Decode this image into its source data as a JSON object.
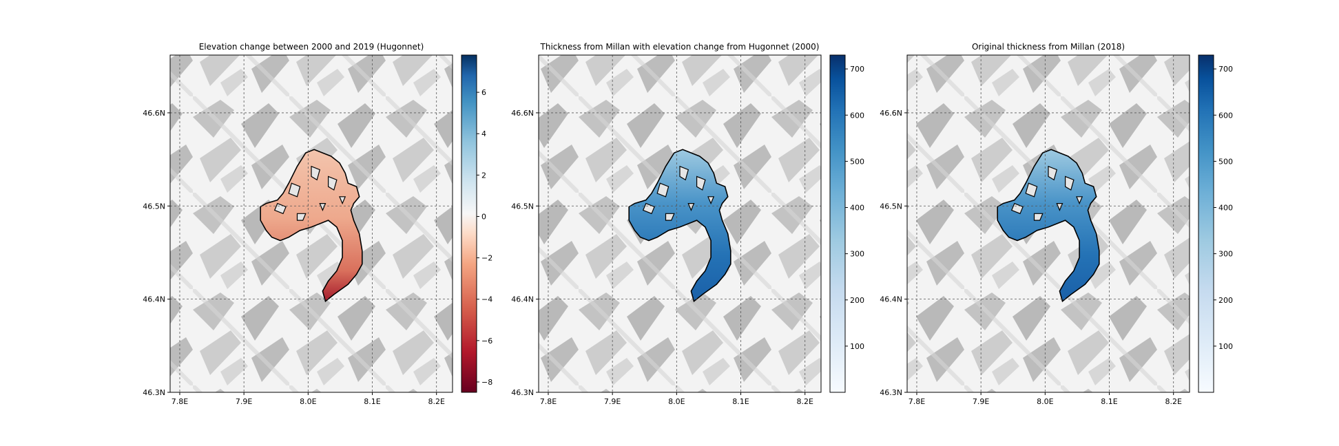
{
  "figure": {
    "panels": [
      {
        "title": "Elevation change between 2000 and 2019 (Hugonnet)",
        "colormap": "RdBu",
        "colorbar_ticks": [
          6,
          4,
          2,
          0,
          -2,
          -4,
          -6,
          -8
        ],
        "colorbar_tick_labels": [
          "6",
          "4",
          "2",
          "0",
          "−2",
          "−4",
          "−6",
          "−8"
        ],
        "colorbar_range": [
          -8.5,
          7.8
        ]
      },
      {
        "title": "Thickness from Millan with elevation change from Hugonnet (2000)",
        "colormap": "Blues",
        "colorbar_ticks": [
          700,
          600,
          500,
          400,
          300,
          200,
          100
        ],
        "colorbar_tick_labels": [
          "700",
          "600",
          "500",
          "400",
          "300",
          "200",
          "100"
        ],
        "colorbar_range": [
          0,
          730
        ]
      },
      {
        "title": "Original thickness from Millan (2018)",
        "colormap": "Blues",
        "colorbar_ticks": [
          700,
          600,
          500,
          400,
          300,
          200,
          100
        ],
        "colorbar_tick_labels": [
          "700",
          "600",
          "500",
          "400",
          "300",
          "200",
          "100"
        ],
        "colorbar_range": [
          0,
          730
        ]
      }
    ]
  },
  "chart_data": [
    {
      "type": "heatmap",
      "title": "Elevation change between 2000 and 2019 (Hugonnet)",
      "x_ticks": [
        7.8,
        7.9,
        8.0,
        8.1,
        8.2
      ],
      "x_tick_labels": [
        "7.8E",
        "7.9E",
        "8.0E",
        "8.1E",
        "8.2E"
      ],
      "y_ticks": [
        46.6,
        46.5,
        46.4,
        46.3
      ],
      "y_tick_labels": [
        "46.6N",
        "46.5N",
        "46.4N",
        "46.3N"
      ],
      "xlim": [
        7.785,
        8.225
      ],
      "ylim": [
        46.3,
        46.662
      ],
      "grid": true,
      "colorbar_range": [
        -8.5,
        7.8
      ]
    },
    {
      "type": "heatmap",
      "title": "Thickness from Millan with elevation change from Hugonnet (2000)",
      "x_ticks": [
        7.8,
        7.9,
        8.0,
        8.1,
        8.2
      ],
      "x_tick_labels": [
        "7.8E",
        "7.9E",
        "8.0E",
        "8.1E",
        "8.2E"
      ],
      "y_ticks": [
        46.6,
        46.5,
        46.4,
        46.3
      ],
      "y_tick_labels": [
        "46.6N",
        "46.5N",
        "46.4N",
        "46.3N"
      ],
      "xlim": [
        7.785,
        8.225
      ],
      "ylim": [
        46.3,
        46.662
      ],
      "grid": true,
      "colorbar_range": [
        0,
        730
      ]
    },
    {
      "type": "heatmap",
      "title": "Original thickness from Millan (2018)",
      "x_ticks": [
        7.8,
        7.9,
        8.0,
        8.1,
        8.2
      ],
      "x_tick_labels": [
        "7.8E",
        "7.9E",
        "8.0E",
        "8.1E",
        "8.2E"
      ],
      "y_ticks": [
        46.6,
        46.5,
        46.4,
        46.3
      ],
      "y_tick_labels": [
        "46.6N",
        "46.5N",
        "46.4N",
        "46.3N"
      ],
      "xlim": [
        7.785,
        8.225
      ],
      "ylim": [
        46.3,
        46.662
      ],
      "grid": true,
      "colorbar_range": [
        0,
        730
      ]
    }
  ]
}
